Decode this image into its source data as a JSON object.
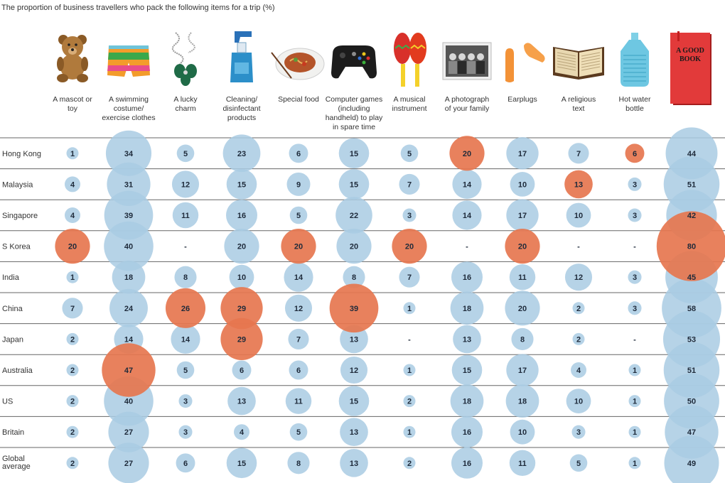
{
  "chart_data": {
    "type": "bubble-table",
    "title": "The proportion of business travellers who pack the following items for a trip (%)",
    "columns": [
      {
        "label": [
          "A mascot or",
          "toy"
        ],
        "icon": "teddy-bear-icon"
      },
      {
        "label": [
          "A swimming",
          "costume/",
          "exercise clothes"
        ],
        "icon": "swim-shorts-icon"
      },
      {
        "label": [
          "A lucky",
          "charm"
        ],
        "icon": "lucky-charm-icon"
      },
      {
        "label": [
          "Cleaning/",
          "disinfectant",
          "products"
        ],
        "icon": "spray-bottle-icon"
      },
      {
        "label": [
          "Special food"
        ],
        "icon": "food-plate-icon"
      },
      {
        "label": [
          "Computer games",
          "(including",
          "handheld) to play",
          "in spare time"
        ],
        "icon": "game-controller-icon"
      },
      {
        "label": [
          "A musical",
          "instrument"
        ],
        "icon": "maracas-icon"
      },
      {
        "label": [
          "A photograph",
          "of your family"
        ],
        "icon": "family-photo-icon"
      },
      {
        "label": [
          "Earplugs"
        ],
        "icon": "earplugs-icon"
      },
      {
        "label": [
          "A religious",
          "text"
        ],
        "icon": "open-book-icon"
      },
      {
        "label": [
          "Hot water",
          "bottle"
        ],
        "icon": "hot-water-bottle-icon"
      },
      {
        "label": [
          ""
        ],
        "icon": "good-book-icon",
        "icon_text": [
          "A GOOD",
          "BOOK"
        ]
      }
    ],
    "rows": [
      {
        "name": [
          "Hong Kong"
        ],
        "values": [
          1,
          34,
          5,
          23,
          6,
          15,
          5,
          20,
          17,
          7,
          6,
          44
        ],
        "highlight": [
          7,
          10
        ]
      },
      {
        "name": [
          "Malaysia"
        ],
        "values": [
          4,
          31,
          12,
          15,
          9,
          15,
          7,
          14,
          10,
          13,
          3,
          51
        ],
        "highlight": [
          9
        ]
      },
      {
        "name": [
          "Singapore"
        ],
        "values": [
          4,
          39,
          11,
          16,
          5,
          22,
          3,
          14,
          17,
          10,
          3,
          42
        ],
        "highlight": []
      },
      {
        "name": [
          "S Korea"
        ],
        "values": [
          20,
          40,
          null,
          20,
          20,
          20,
          20,
          null,
          20,
          null,
          null,
          80
        ],
        "highlight": [
          0,
          4,
          6,
          8,
          11
        ]
      },
      {
        "name": [
          "India"
        ],
        "values": [
          1,
          18,
          8,
          10,
          14,
          8,
          7,
          16,
          11,
          12,
          3,
          45
        ],
        "highlight": []
      },
      {
        "name": [
          "China"
        ],
        "values": [
          7,
          24,
          26,
          29,
          12,
          39,
          1,
          18,
          20,
          2,
          3,
          58
        ],
        "highlight": [
          2,
          3,
          5
        ]
      },
      {
        "name": [
          "Japan"
        ],
        "values": [
          2,
          14,
          14,
          29,
          7,
          13,
          null,
          13,
          8,
          2,
          null,
          53
        ],
        "highlight": [
          3
        ]
      },
      {
        "name": [
          "Australia"
        ],
        "values": [
          2,
          47,
          5,
          6,
          6,
          12,
          1,
          15,
          17,
          4,
          1,
          51
        ],
        "highlight": [
          1
        ]
      },
      {
        "name": [
          "US"
        ],
        "values": [
          2,
          40,
          3,
          13,
          11,
          15,
          2,
          18,
          18,
          10,
          1,
          50
        ],
        "highlight": []
      },
      {
        "name": [
          "Britain"
        ],
        "values": [
          2,
          27,
          3,
          4,
          5,
          13,
          1,
          16,
          10,
          3,
          1,
          47
        ],
        "highlight": []
      },
      {
        "name": [
          "Global",
          "average"
        ],
        "values": [
          2,
          27,
          6,
          15,
          8,
          13,
          2,
          16,
          11,
          5,
          1,
          49
        ],
        "highlight": []
      }
    ],
    "missing_label": "-",
    "colors": {
      "normal": "#a9cbe3",
      "highlight": "#e6764f",
      "row_line": "#666666",
      "text": "#1e2a3a"
    }
  }
}
